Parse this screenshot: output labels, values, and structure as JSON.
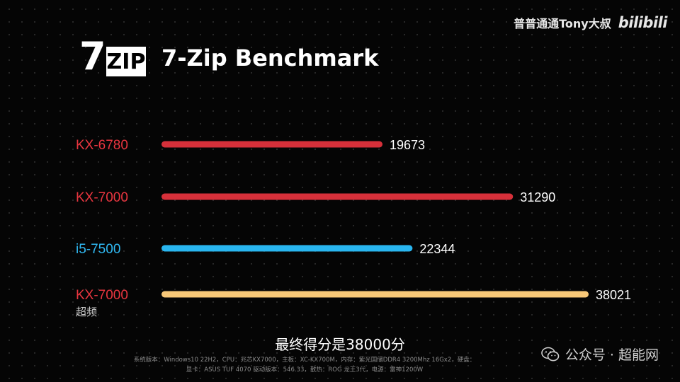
{
  "watermark": {
    "channel": "普普通通Tony大叔",
    "site": "bilibili"
  },
  "header": {
    "logo_seven": "7",
    "logo_zip": "ZIP",
    "title": "7-Zip Benchmark"
  },
  "chart_data": {
    "type": "bar",
    "orientation": "horizontal",
    "title": "7-Zip Benchmark",
    "categories": [
      "KX-6780",
      "KX-7000",
      "i5-7500",
      "KX-7000"
    ],
    "category_sublabels": [
      "",
      "",
      "",
      "超频"
    ],
    "values": [
      19673,
      31290,
      22344,
      38021
    ],
    "colors": [
      "#d6303a",
      "#d6303a",
      "#29b6f0",
      "#f8c878"
    ],
    "label_colors": [
      "#e8353f",
      "#e8353f",
      "#2fb8f2",
      "#e8353f"
    ],
    "xlim": [
      0,
      38021
    ],
    "grid": false,
    "legend": "none"
  },
  "caption": "最终得分是38000分",
  "footnote": {
    "line1": "系统版本：Windows10 22H2，CPU：兆芯KX7000，主板：XC-KX700M，内存：紫光国储DDR4 3200Mhz 16Gx2，硬盘：",
    "line2": "显卡：ASUS TUF 4070 驱动版本：546.33，散热：ROG 龙王3代，电源：雷神1200W"
  },
  "wechat": {
    "label": "公众号 · 超能网"
  }
}
